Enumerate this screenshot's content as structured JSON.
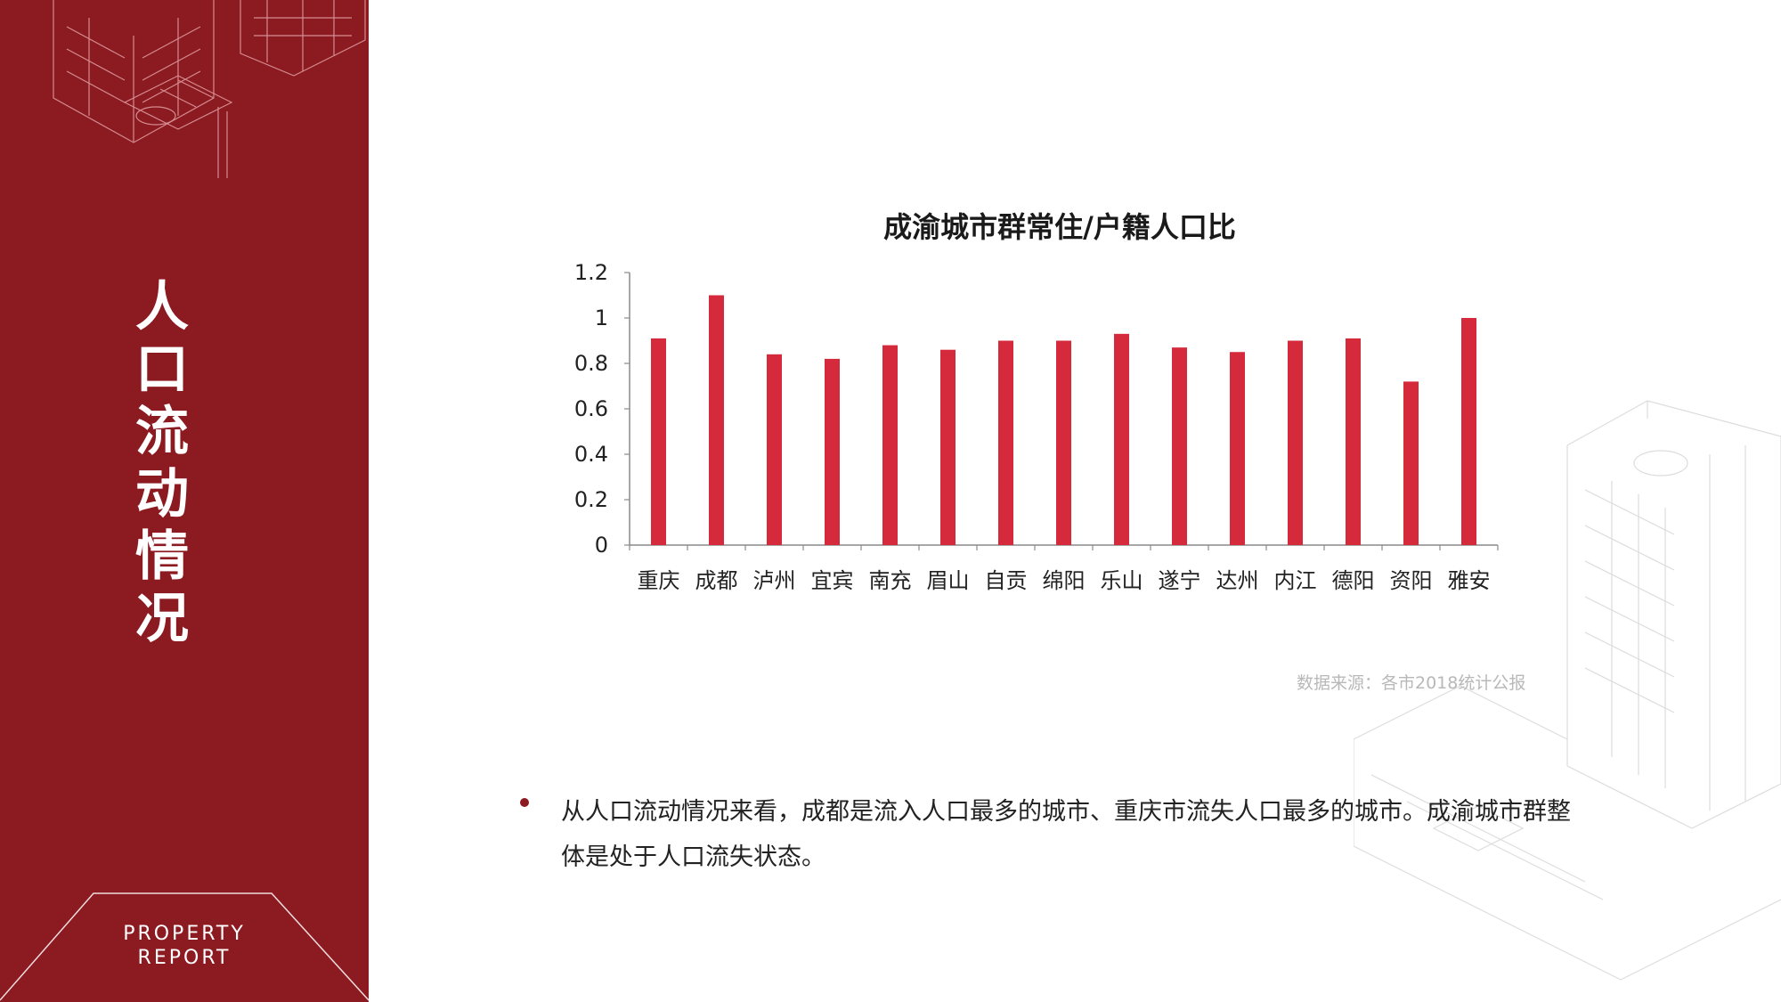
{
  "sidebar": {
    "title_chars": [
      "人",
      "口",
      "流",
      "动",
      "情",
      "况"
    ],
    "badge_line1": "PROPERTY",
    "badge_line2": "REPORT"
  },
  "chart_data": {
    "type": "bar",
    "title": "成渝城市群常住/户籍人口比",
    "categories": [
      "重庆",
      "成都",
      "泸州",
      "宜宾",
      "南充",
      "眉山",
      "自贡",
      "绵阳",
      "乐山",
      "遂宁",
      "达州",
      "内江",
      "德阳",
      "资阳",
      "雅安"
    ],
    "values": [
      0.91,
      1.1,
      0.84,
      0.82,
      0.88,
      0.86,
      0.9,
      0.9,
      0.93,
      0.87,
      0.85,
      0.9,
      0.91,
      0.72,
      1.0
    ],
    "ylim": [
      0,
      1.2
    ],
    "yticks": [
      "0",
      "0.2",
      "0.4",
      "0.6",
      "0.8",
      "1",
      "1.2"
    ],
    "bar_color": "#d42a3c",
    "grid": false,
    "legend": "none"
  },
  "source": "数据来源：各市2018统计公报",
  "note": "从人口流动情况来看，成都是流入人口最多的城市、重庆市流失人口最多的城市。成渝城市群整体是处于人口流失状态。"
}
